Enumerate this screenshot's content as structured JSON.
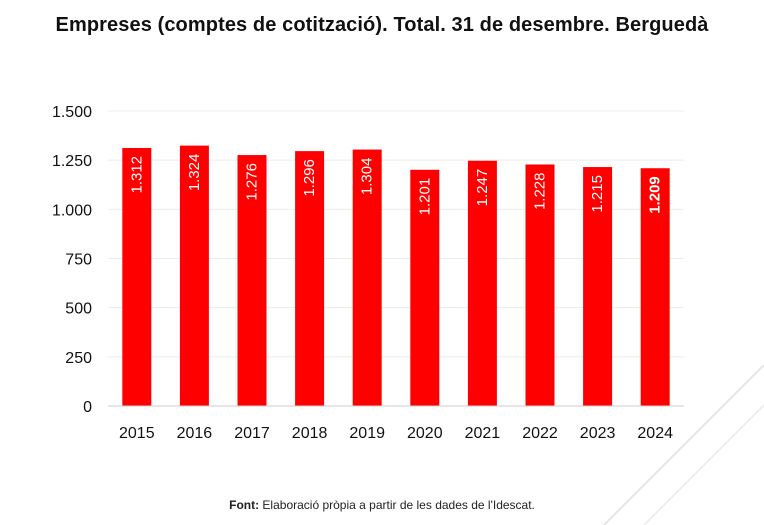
{
  "source": {
    "label": "Font:",
    "text": " Elaboració pròpia a partir de les dades de l'Idescat."
  },
  "colors": {
    "bar": "#ff0000",
    "bar_label": "#ffffff",
    "text": "#111111",
    "grid": "#ececec",
    "axis": "#cccccc"
  },
  "chart_data": {
    "type": "bar",
    "title": "Empreses (comptes de cotització). Total. 31 de desembre. Berguedà",
    "xlabel": "",
    "ylabel": "",
    "categories": [
      "2015",
      "2016",
      "2017",
      "2018",
      "2019",
      "2020",
      "2021",
      "2022",
      "2023",
      "2024"
    ],
    "values": [
      1312,
      1324,
      1276,
      1296,
      1304,
      1201,
      1247,
      1228,
      1215,
      1209
    ],
    "value_labels": [
      "1.312",
      "1.324",
      "1.276",
      "1.296",
      "1.304",
      "1.201",
      "1.247",
      "1.228",
      "1.215",
      "1.209"
    ],
    "highlight_index": 9,
    "ylim": [
      0,
      1500
    ],
    "yticks": [
      0,
      250,
      500,
      750,
      1000,
      1250,
      1500
    ],
    "ytick_labels": [
      "0",
      "250",
      "500",
      "750",
      "1.000",
      "1.250",
      "1.500"
    ],
    "grid": true,
    "legend": "none"
  }
}
